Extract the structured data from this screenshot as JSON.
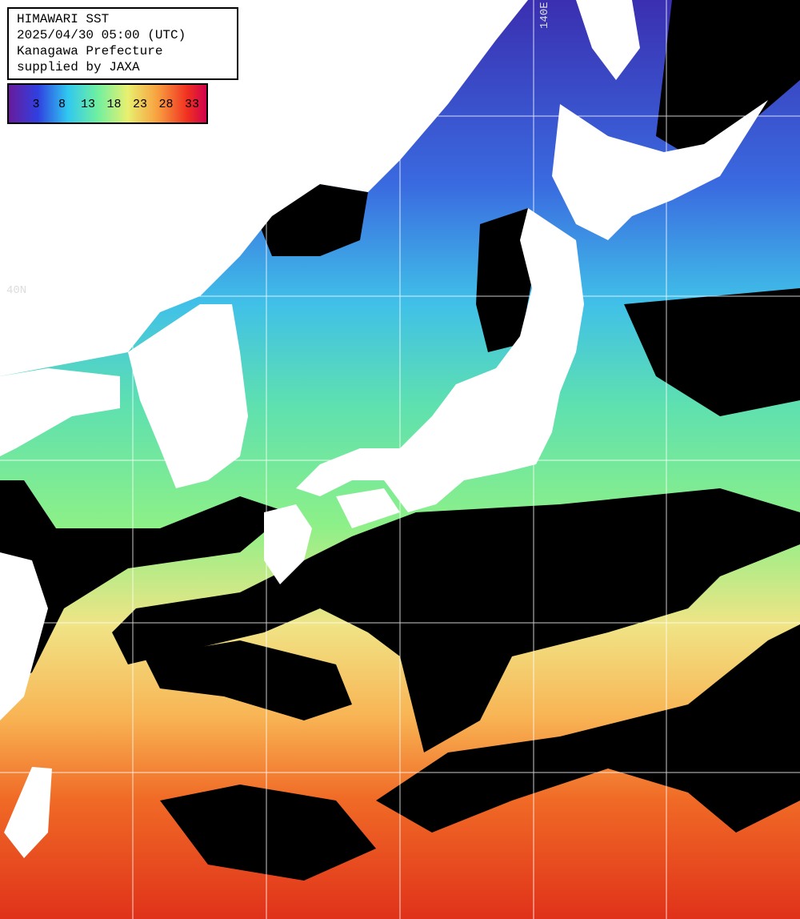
{
  "header": {
    "lines": [
      "HIMAWARI SST",
      "2025/04/30 05:00 (UTC)",
      "Kanagawa Prefecture",
      "supplied by JAXA"
    ]
  },
  "legend": {
    "labels": [
      "3",
      "8",
      "13",
      "18",
      "23",
      "28",
      "33"
    ]
  },
  "grid_labels": {
    "longitude": "140E",
    "latitude": "40N"
  }
}
